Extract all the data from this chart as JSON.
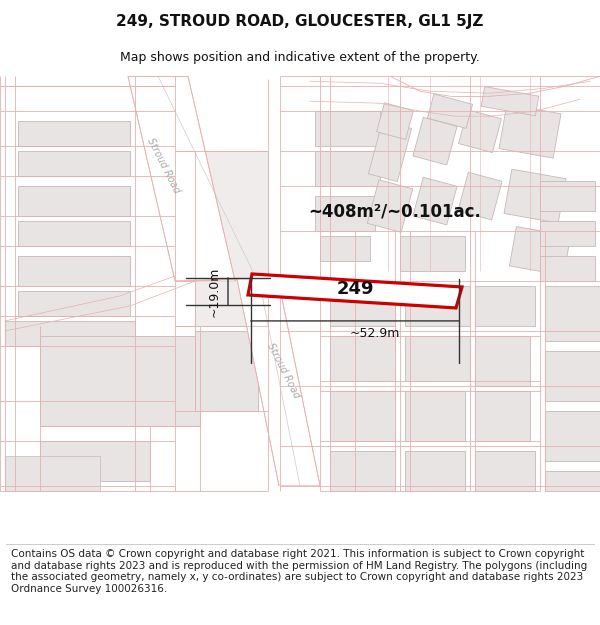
{
  "title": "249, STROUD ROAD, GLOUCESTER, GL1 5JZ",
  "subtitle": "Map shows position and indicative extent of the property.",
  "footer": "Contains OS data © Crown copyright and database right 2021. This information is subject to Crown copyright and database rights 2023 and is reproduced with the permission of HM Land Registry. The polygons (including the associated geometry, namely x, y co-ordinates) are subject to Crown copyright and database rights 2023 Ordnance Survey 100026316.",
  "area_label": "~408m²/~0.101ac.",
  "width_label": "~52.9m",
  "height_label": "~19.0m",
  "number_label": "249",
  "map_bg": "#f7f3f3",
  "road_fill": "#ffffff",
  "bld_fill": "#e8e4e4",
  "bld_edge": "#c8b8b8",
  "highlight_red": "#cc0000",
  "dim_color": "#333333",
  "road_label_color": "#aaaaaa",
  "text_dark": "#111111",
  "thin_red": "#e8a0a0",
  "cadastral_red": "#e8b0b0",
  "title_fontsize": 11,
  "subtitle_fontsize": 9,
  "footer_fontsize": 7.5
}
